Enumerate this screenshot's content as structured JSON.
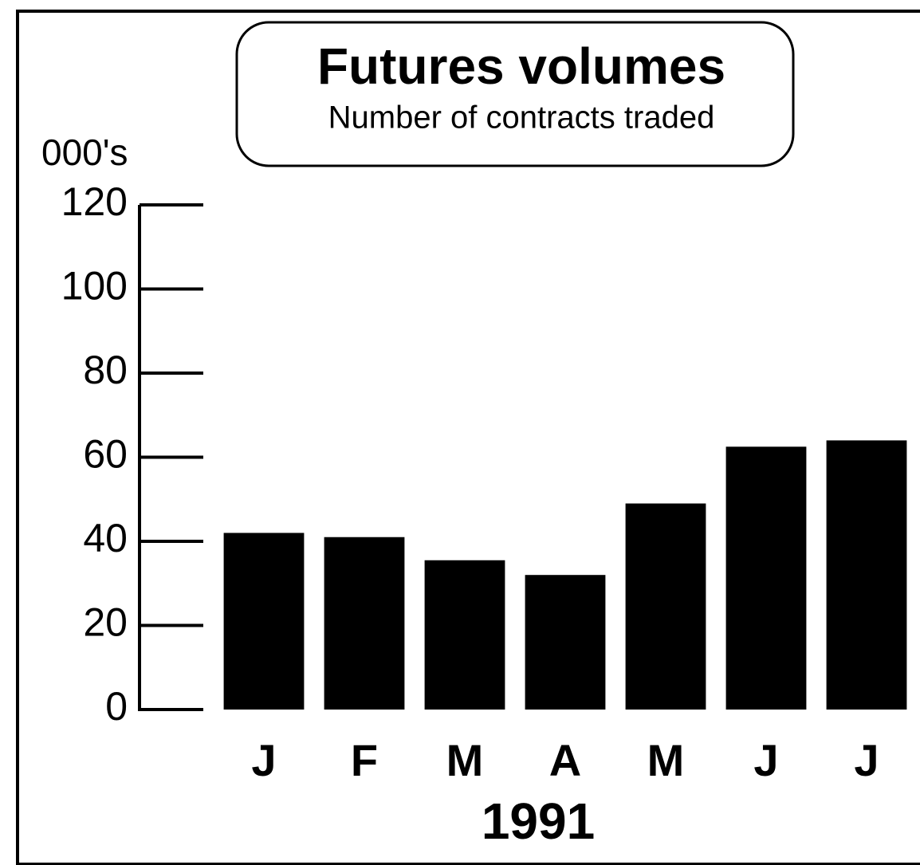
{
  "chart_data": {
    "type": "bar",
    "title": "Futures volumes",
    "subtitle": "Number of contracts traded",
    "y_unit_label": "000's",
    "x_label": "1991",
    "categories": [
      "J",
      "F",
      "M",
      "A",
      "M",
      "J",
      "J"
    ],
    "values": [
      42,
      41,
      35.5,
      32,
      49,
      62.5,
      64
    ],
    "color": "#000000",
    "ylim": [
      0,
      120
    ],
    "yticks": [
      0,
      20,
      40,
      60,
      80,
      100,
      120
    ]
  }
}
